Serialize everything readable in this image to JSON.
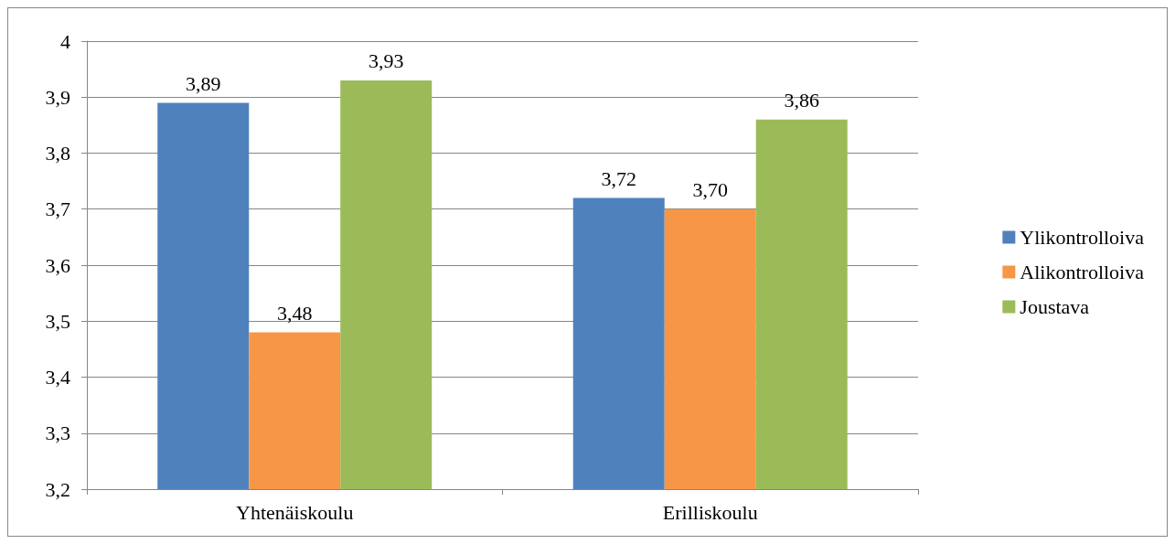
{
  "chart_data": {
    "type": "bar",
    "categories": [
      "Yhtenäiskoulu",
      "Erilliskoulu"
    ],
    "series": [
      {
        "name": "Ylikontrolloiva",
        "color": "#4f81bd",
        "values": [
          3.89,
          3.72
        ],
        "value_labels": [
          "3,89",
          "3,72"
        ]
      },
      {
        "name": "Alikontrolloiva",
        "color": "#f79646",
        "values": [
          3.48,
          3.7
        ],
        "value_labels": [
          "3,48",
          "3,70"
        ]
      },
      {
        "name": "Joustava",
        "color": "#9bbb59",
        "values": [
          3.93,
          3.86
        ],
        "value_labels": [
          "3,93",
          "3,86"
        ]
      }
    ],
    "ylim": [
      3.2,
      4
    ],
    "yticks": [
      {
        "value": 3.2,
        "label": "3,2"
      },
      {
        "value": 3.3,
        "label": "3,3"
      },
      {
        "value": 3.4,
        "label": "3,4"
      },
      {
        "value": 3.5,
        "label": "3,5"
      },
      {
        "value": 3.6,
        "label": "3,6"
      },
      {
        "value": 3.7,
        "label": "3,7"
      },
      {
        "value": 3.8,
        "label": "3,8"
      },
      {
        "value": 3.9,
        "label": "3,9"
      },
      4
    ],
    "grid": "y",
    "legend": "right"
  }
}
